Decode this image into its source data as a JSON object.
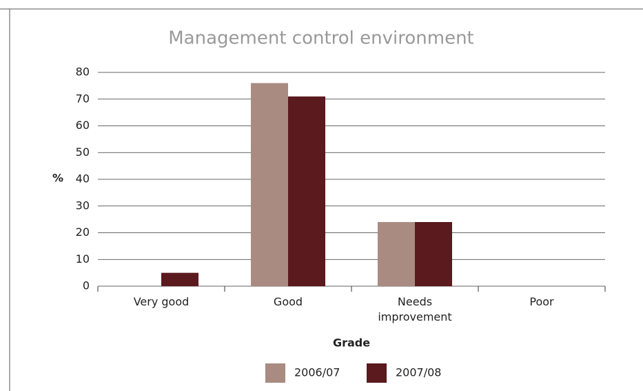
{
  "chart_data": {
    "type": "bar",
    "title": "Management control environment",
    "x_label": "Grade",
    "y_label": "%",
    "categories": [
      "Very good",
      "Good",
      "Needs improvement",
      "Poor"
    ],
    "series": [
      {
        "name": "2006/07",
        "color": "#a98b81",
        "values": [
          0,
          76,
          24,
          0
        ]
      },
      {
        "name": "2007/08",
        "color": "#5a1a1e",
        "values": [
          5,
          71,
          24,
          0
        ]
      }
    ],
    "ylim": [
      0,
      80
    ],
    "yticks": [
      0,
      10,
      20,
      30,
      40,
      50,
      60,
      70,
      80
    ],
    "grid": true,
    "legend": "bottom"
  }
}
